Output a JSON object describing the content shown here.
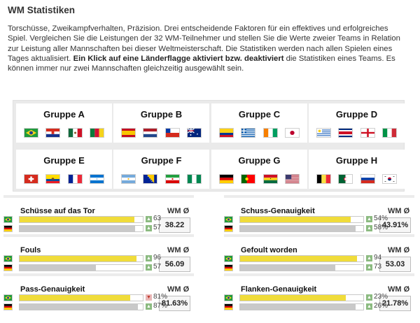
{
  "title": "WM Statistiken",
  "intro": {
    "text_1": "Torschüsse, Zweikampfverhalten, Präzision. Drei entscheidende Faktoren für ein effektives und erfolgreiches Spiel. Vergleichen Sie die Leistungen der 32 WM-Teilnehmer und stellen Sie die Werte zweier Teams in Relation zur Leistung aller Mannschaften bei dieser Weltmeisterschaft. Die Statistiken werden nach allen Spielen eines Tages aktualisiert. ",
    "bold": "Ein Klick auf eine Länderflagge aktiviert bzw. deaktiviert",
    "text_2": " die Statistiken eines Teams. Es können immer nur zwei Mannschaften gleichzeitig ausgewählt sein."
  },
  "groups": [
    {
      "name": "Gruppe A",
      "flags": [
        "brazil-flag",
        "croatia-flag",
        "mexico-flag",
        "cameroon-flag"
      ]
    },
    {
      "name": "Gruppe B",
      "flags": [
        "spain-flag",
        "netherlands-flag",
        "chile-flag",
        "australia-flag"
      ]
    },
    {
      "name": "Gruppe C",
      "flags": [
        "colombia-flag",
        "greece-flag",
        "ivory-coast-flag",
        "japan-flag"
      ]
    },
    {
      "name": "Gruppe D",
      "flags": [
        "uruguay-flag",
        "costa-rica-flag",
        "england-flag",
        "italy-flag"
      ]
    },
    {
      "name": "Gruppe E",
      "flags": [
        "switzerland-flag",
        "ecuador-flag",
        "france-flag",
        "honduras-flag"
      ]
    },
    {
      "name": "Gruppe F",
      "flags": [
        "argentina-flag",
        "bosnia-flag",
        "iran-flag",
        "nigeria-flag"
      ]
    },
    {
      "name": "Gruppe G",
      "flags": [
        "germany-flag",
        "portugal-flag",
        "ghana-flag",
        "usa-flag"
      ]
    },
    {
      "name": "Gruppe H",
      "flags": [
        "belgium-flag",
        "algeria-flag",
        "russia-flag",
        "south-korea-flag"
      ]
    }
  ],
  "colors": {
    "team1": "#f0dc3a",
    "team2": "#c9c9c9",
    "up": "#8cbb81",
    "down": "#e9b7b7"
  },
  "stats": [
    {
      "label": "Schüsse auf das Tor",
      "wm_label": "WM Ø",
      "avg": "38.22",
      "team1": {
        "flag": "brazil-flag",
        "value": "63",
        "fill": 0.93,
        "trend": "up"
      },
      "team2": {
        "flag": "germany-flag",
        "value": "57",
        "fill": 0.94,
        "trend": "up"
      }
    },
    {
      "label": "Schuss-Genauigkeit",
      "wm_label": "WM Ø",
      "avg": "43.91%",
      "team1": {
        "flag": "brazil-flag",
        "value": "54%",
        "fill": 0.9,
        "trend": "up"
      },
      "team2": {
        "flag": "germany-flag",
        "value": "58%",
        "fill": 0.94,
        "trend": "up"
      }
    },
    {
      "label": "Fouls",
      "wm_label": "WM Ø",
      "avg": "56.09",
      "team1": {
        "flag": "brazil-flag",
        "value": "96",
        "fill": 0.95,
        "trend": "up"
      },
      "team2": {
        "flag": "germany-flag",
        "value": "57",
        "fill": 0.62,
        "trend": "up"
      }
    },
    {
      "label": "Gefoult worden",
      "wm_label": "WM Ø",
      "avg": "53.03",
      "team1": {
        "flag": "brazil-flag",
        "value": "94",
        "fill": 0.95,
        "trend": "up"
      },
      "team2": {
        "flag": "germany-flag",
        "value": "73",
        "fill": 0.77,
        "trend": "up"
      }
    },
    {
      "label": "Pass-Genauigkeit",
      "wm_label": "WM Ø",
      "avg": "81.63%",
      "team1": {
        "flag": "brazil-flag",
        "value": "81%",
        "fill": 0.9,
        "trend": "down"
      },
      "team2": {
        "flag": "germany-flag",
        "value": "87%",
        "fill": 0.96,
        "trend": "up"
      }
    },
    {
      "label": "Flanken-Genauigkeit",
      "wm_label": "WM Ø",
      "avg": "21.78%",
      "team1": {
        "flag": "brazil-flag",
        "value": "23%",
        "fill": 0.86,
        "trend": "up"
      },
      "team2": {
        "flag": "germany-flag",
        "value": "26%",
        "fill": 0.94,
        "trend": "up"
      }
    }
  ]
}
